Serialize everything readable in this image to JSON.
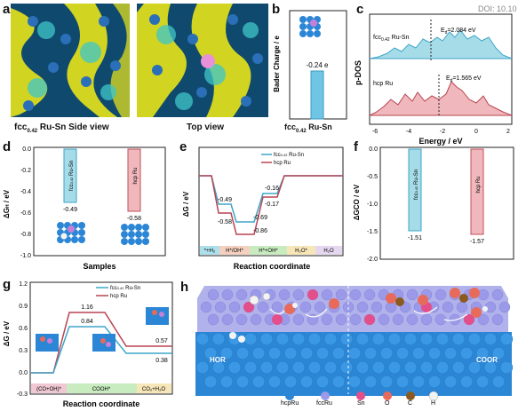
{
  "watermark": "DOI: 10.10",
  "panel_a": {
    "label": "a",
    "caption_side": "fcc",
    "caption_side_sub": "0.42",
    "caption_side_rest": " Ru-Sn Side view",
    "caption_top": "Top view"
  },
  "panel_b": {
    "label": "b",
    "ylabel": "Bader Charge / e",
    "value_label": "-0.24 e",
    "x_label_main": "fcc",
    "x_label_sub": "0.42",
    "x_label_rest": " Ru-Sn",
    "chart_data": {
      "type": "bar",
      "categories": [
        "fcc0.42 Ru-Sn"
      ],
      "values": [
        -0.24
      ]
    }
  },
  "panel_c": {
    "label": "c",
    "ylabel": "p-DOS",
    "xlabel": "Energy / eV",
    "xticks": [
      "-6",
      "-4",
      "-2",
      "0",
      "2"
    ],
    "series1_label_main": "fcc",
    "series1_label_sub": "0.42",
    "series1_label_rest": " Ru-Sn",
    "series1_ed": "E",
    "series1_ed_sub": "d",
    "series1_ed_val": "=2.084 eV",
    "series2_label": "hcp Ru",
    "series2_ed": "E",
    "series2_ed_sub": "d",
    "series2_ed_val": "=1.565 eV",
    "colors": {
      "s1": "#5fb4cf",
      "s2": "#c0505a"
    }
  },
  "panel_d": {
    "label": "d",
    "ylabel": "ΔG",
    "ylabel_sub": "H",
    "ylabel_rest": " / eV",
    "xlabel": "Samples",
    "yticks": [
      "0.0",
      "-0.2",
      "-0.4",
      "-0.6",
      "-0.8",
      "-1.0"
    ],
    "bar1_label_main": "fcc",
    "bar1_label_sub": "0.42",
    "bar1_label_rest": " Ru-Sn",
    "bar2_label": "hcp Ru",
    "value1": "-0.49",
    "value2": "-0.58",
    "chart_data": {
      "type": "bar",
      "categories": [
        "fcc0.42 Ru-Sn",
        "hcp Ru"
      ],
      "values": [
        -0.49,
        -0.58
      ],
      "ylim": [
        -1.0,
        0.0
      ]
    }
  },
  "panel_e": {
    "label": "e",
    "ylabel": "ΔG / eV",
    "xlabel": "Reaction coordinate",
    "legend1_main": "fcc",
    "legend1_sub": "0.42",
    "legend1_rest": " Ru-Sn",
    "legend2": "hcp Ru",
    "steps": [
      "*+H",
      "H*/OH*",
      "H*+OH*",
      "H",
      "O*",
      "H",
      "O"
    ],
    "step_labels": [
      "*+H₂",
      "H*/OH*",
      "H*+OH*",
      "H₂O*",
      "H₂O"
    ],
    "chart_data": {
      "type": "line",
      "categories": [
        "*+H2",
        "H*/OH*",
        "H*+OH*",
        "H2O*",
        "H2O"
      ],
      "series": [
        {
          "name": "fcc0.42 Ru-Sn",
          "values": [
            0,
            -0.49,
            -0.69,
            -0.16,
            0
          ]
        },
        {
          "name": "hcp Ru",
          "values": [
            0,
            -0.58,
            -0.86,
            -0.17,
            0
          ]
        }
      ]
    },
    "labels": {
      "a1": "-0.49",
      "a2": "-0.58",
      "a3": "-0.69",
      "a4": "-0.86",
      "a5": "-0.16",
      "a6": "-0.17"
    }
  },
  "panel_f": {
    "label": "f",
    "ylabel": "ΔGCO / eV",
    "yticks": [
      "0.0",
      "-0.5",
      "-1.0",
      "-1.5",
      "-2.0"
    ],
    "bar1_label_main": "fcc",
    "bar1_label_sub": "0.42",
    "bar1_label_rest": " Ru-Sn",
    "bar2_label": "hcp Ru",
    "value1": "-1.51",
    "value2": "-1.57",
    "chart_data": {
      "type": "bar",
      "categories": [
        "fcc0.42 Ru-Sn",
        "hcp Ru"
      ],
      "values": [
        -1.51,
        -1.57
      ],
      "ylim": [
        -2.0,
        0.0
      ]
    }
  },
  "panel_g": {
    "label": "g",
    "ylabel": "ΔG / eV",
    "xlabel": "Reaction coordinate",
    "yticks": [
      "1.2",
      "0.9",
      "0.6",
      "0.3",
      "0.0",
      "-0.3"
    ],
    "legend1_main": "fcc",
    "legend1_sub": "0.42",
    "legend1_rest": " Ru-Sn",
    "legend2": "hcp Ru",
    "step1": "(CO+OH)*",
    "step2": "COOH*",
    "step3": "CO₂+H₂O",
    "chart_data": {
      "type": "line",
      "categories": [
        "(CO+OH)*",
        "COOH*",
        "CO2+H2O"
      ],
      "series": [
        {
          "name": "fcc0.42 Ru-Sn",
          "values": [
            0,
            0.84,
            0.38
          ]
        },
        {
          "name": "hcp Ru",
          "values": [
            0,
            1.16,
            0.57
          ]
        }
      ],
      "ylim": [
        -0.3,
        1.2
      ]
    },
    "labels": {
      "v1": "1.16",
      "v2": "0.84",
      "v3": "0.57",
      "v4": "0.38"
    }
  },
  "panel_h": {
    "label": "h",
    "hor": "HOR",
    "coor": "COOR",
    "legend": [
      "hcpRu",
      "fccRu",
      "Sn",
      "O",
      "C",
      "H"
    ],
    "legend_colors": [
      "#2c86d6",
      "#9a9ae8",
      "#e34f8a",
      "#e86a5a",
      "#8a5a1e",
      "#f4f4f4"
    ]
  }
}
